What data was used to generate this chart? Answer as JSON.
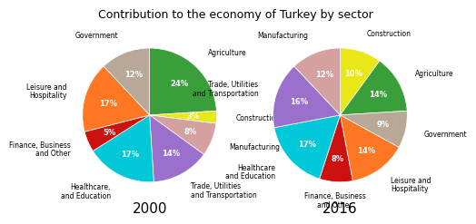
{
  "title": "Contribution to the economy of Turkey by sector",
  "chart2000": {
    "year": "2000",
    "labels": [
      "Agriculture",
      "Construction",
      "Manufacturing",
      "Trade, Utilities\nand Transportation",
      "Healthcare,\nand Education",
      "Finance, Business\nand Other",
      "Leisure and\nHospitality",
      "Government"
    ],
    "values": [
      24,
      3,
      8,
      14,
      17,
      5,
      17,
      12
    ],
    "colors": [
      "#3a9e3a",
      "#e8e817",
      "#d4a0a0",
      "#9b6fcc",
      "#00c8d8",
      "#cc1111",
      "#ff7722",
      "#b8a898"
    ]
  },
  "chart2016": {
    "year": "2016",
    "labels": [
      "Construction",
      "Agriculture",
      "Government",
      "Leisure and\nHospitality",
      "Finance, Business\nand Other",
      "Healthcare\nand Education",
      "Trade, Utilities\nand Transportation",
      "Manufacturing"
    ],
    "values": [
      10,
      14,
      9,
      14,
      8,
      17,
      16,
      12
    ],
    "colors": [
      "#e8e817",
      "#3a9e3a",
      "#b8a898",
      "#ff7722",
      "#cc1111",
      "#00c8d8",
      "#9b6fcc",
      "#d4a0a0"
    ]
  },
  "title_fontsize": 9,
  "label_fontsize": 5.5,
  "pct_fontsize": 6.0,
  "year_fontsize": 11,
  "background_color": "#ffffff"
}
